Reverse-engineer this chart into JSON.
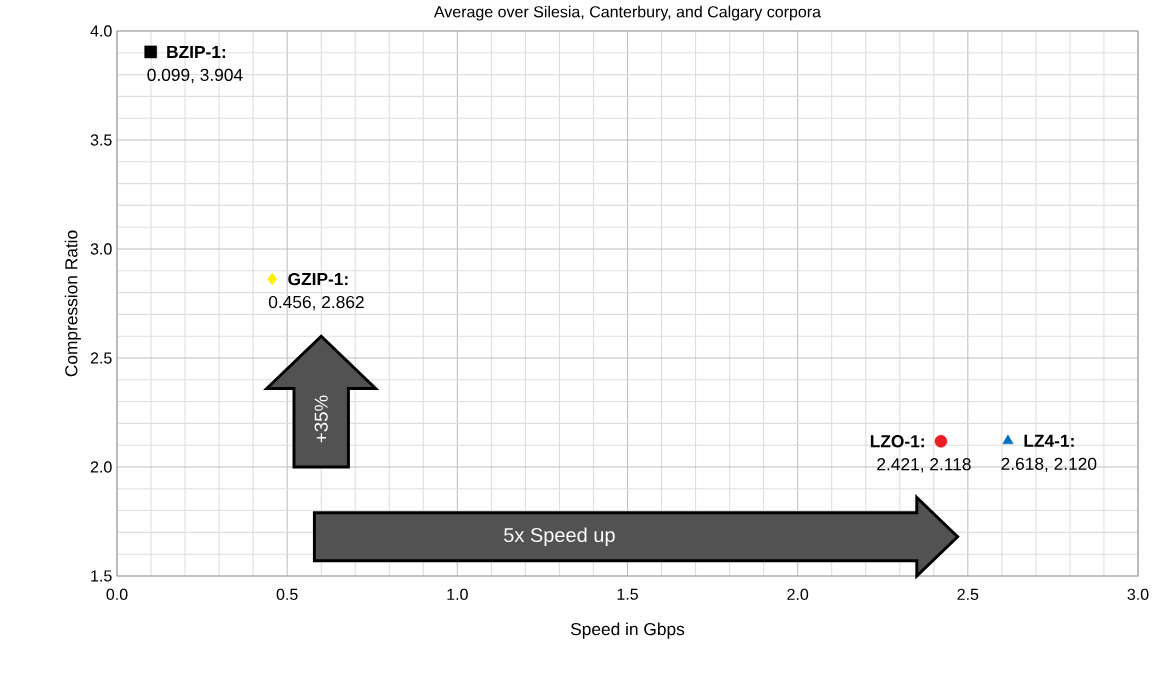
{
  "chart_data": {
    "type": "scatter",
    "title": "Average over Silesia, Canterbury, and Calgary corpora",
    "xlabel": "Speed in Gbps",
    "ylabel": "Compression Ratio",
    "xlim": [
      0.0,
      3.0
    ],
    "xticks": [
      {
        "value": 0,
        "label": "0.0"
      },
      0.5,
      {
        "value": 1,
        "label": "1.0"
      },
      1.5,
      {
        "value": 2,
        "label": "2.0"
      },
      2.5,
      {
        "value": 3,
        "label": "3.0"
      }
    ],
    "ylim": [
      1.5,
      4.0
    ],
    "yticks": [
      1.5,
      {
        "value": 2,
        "label": "2.0"
      },
      2.5,
      {
        "value": 3,
        "label": "3.0"
      },
      3.5,
      {
        "value": 4,
        "label": "4.0"
      }
    ],
    "grid": true,
    "series": [
      {
        "name": "BZIP-1:",
        "color": "#000000",
        "marker": "square",
        "x": [
          0.099
        ],
        "values": [
          3.904
        ],
        "value_labels": [
          "0.099, 3.904"
        ]
      },
      {
        "name": "GZIP-1:",
        "color": "#ffee00",
        "marker": "diamond",
        "x": [
          0.456
        ],
        "values": [
          2.862
        ],
        "value_labels": [
          "0.456, 2.862"
        ]
      },
      {
        "name": "LZO-1:",
        "color": "#ee1c25",
        "marker": "circle",
        "x": [
          2.421
        ],
        "values": [
          2.118
        ],
        "value_labels": [
          "2.421, 2.118"
        ]
      },
      {
        "name": "LZ4-1:",
        "color": "#0070c0",
        "marker": "triangle",
        "x": [
          2.618
        ],
        "values": [
          2.12
        ],
        "value_labels": [
          "2.618, 2.120"
        ]
      }
    ],
    "annotations": [
      "+35%",
      "5x Speed up"
    ]
  }
}
